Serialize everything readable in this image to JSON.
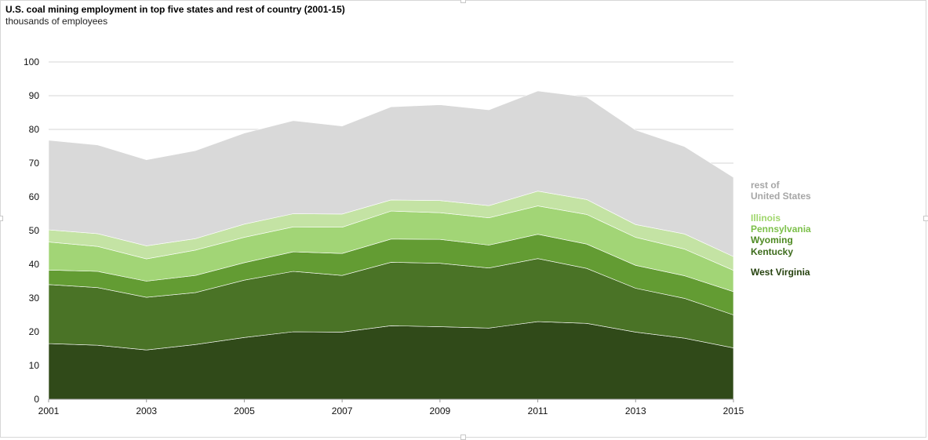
{
  "title": "U.S. coal mining employment in top five states and rest of country (2001-15)",
  "subtitle": "thousands of employees",
  "chart_data": {
    "type": "area",
    "stacked": true,
    "title": "U.S. coal mining employment in top five states and rest of country (2001-15)",
    "ylabel": "thousands of employees",
    "xlim": [
      2001,
      2015
    ],
    "ylim": [
      0,
      100
    ],
    "x_ticks": [
      "2001",
      "2003",
      "2005",
      "2007",
      "2009",
      "2011",
      "2013",
      "2015"
    ],
    "y_ticks": [
      "0",
      "10",
      "20",
      "30",
      "40",
      "50",
      "60",
      "70",
      "80",
      "90",
      "100"
    ],
    "grid": "horizontal",
    "legend_position": "right",
    "x": [
      2001,
      2002,
      2003,
      2004,
      2005,
      2006,
      2007,
      2008,
      2009,
      2010,
      2011,
      2012,
      2013,
      2014,
      2015
    ],
    "series": [
      {
        "name": "West Virginia",
        "color": "#304a19",
        "values": [
          16.5,
          16.0,
          14.6,
          16.2,
          18.3,
          20.0,
          19.9,
          21.8,
          21.5,
          21.1,
          23.0,
          22.5,
          19.9,
          18.1,
          15.2
        ]
      },
      {
        "name": "Kentucky",
        "color": "#4a7326",
        "values": [
          17.5,
          17.1,
          15.6,
          15.4,
          17.0,
          17.9,
          16.8,
          18.8,
          18.8,
          17.8,
          18.7,
          16.3,
          13.0,
          11.8,
          9.8
        ]
      },
      {
        "name": "Wyoming",
        "color": "#639c33",
        "values": [
          4.3,
          4.8,
          4.8,
          5.1,
          5.2,
          5.8,
          6.5,
          6.9,
          7.1,
          6.8,
          7.2,
          7.2,
          6.8,
          6.7,
          6.9
        ]
      },
      {
        "name": "Pennsylvania",
        "color": "#a2d576",
        "values": [
          8.3,
          7.4,
          6.6,
          7.5,
          7.5,
          7.4,
          7.8,
          8.3,
          7.9,
          8.1,
          8.4,
          8.8,
          8.3,
          7.9,
          6.3
        ]
      },
      {
        "name": "Illinois",
        "color": "#c4e3a4",
        "values": [
          3.6,
          3.8,
          3.9,
          3.4,
          3.9,
          3.9,
          3.9,
          3.3,
          3.6,
          3.6,
          4.4,
          4.4,
          3.8,
          4.5,
          4.1
        ]
      },
      {
        "name": "rest of United States",
        "color": "#d9d9d9",
        "values": [
          26.6,
          26.3,
          25.5,
          26.1,
          27.0,
          27.6,
          26.1,
          27.6,
          28.4,
          28.4,
          29.7,
          30.4,
          28.0,
          25.9,
          23.5
        ]
      }
    ]
  },
  "legend": {
    "rest_line1": "rest of",
    "rest_line2": "United States",
    "illinois": "Illinois",
    "pennsylvania": "Pennsylvania",
    "wyoming": "Wyoming",
    "kentucky": "Kentucky",
    "west_virginia": "West Virginia",
    "colors": {
      "rest": "#a6a6a6",
      "illinois": "#9fd66b",
      "pennsylvania": "#7cc04a",
      "wyoming": "#4e8a22",
      "kentucky": "#3d6b1c",
      "west_virginia": "#26420f"
    }
  }
}
